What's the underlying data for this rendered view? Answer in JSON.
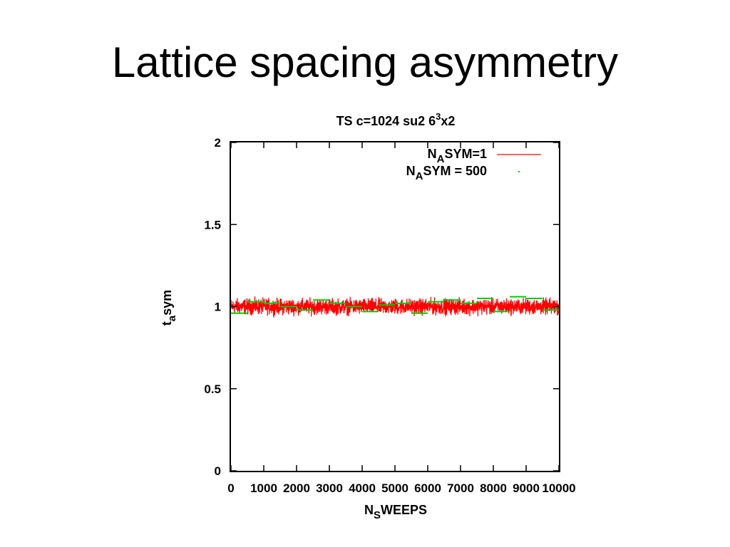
{
  "slide": {
    "title": "Lattice spacing asymmetry"
  },
  "chart_data": {
    "type": "line",
    "title": {
      "pre": "TS c=1024 su2 6",
      "sup": "3",
      "post": "x2"
    },
    "xlabel": {
      "pre": "N",
      "sub": "S",
      "post": "WEEPS"
    },
    "ylabel": {
      "pre": "t",
      "sub": "a",
      "post": "sym"
    },
    "xlim": [
      0,
      10000
    ],
    "ylim": [
      0,
      2
    ],
    "x_ticks": [
      0,
      1000,
      2000,
      3000,
      4000,
      5000,
      6000,
      7000,
      8000,
      9000,
      10000
    ],
    "x_tick_labels": [
      "0",
      "1000",
      "2000",
      "3000",
      "4000",
      "5000",
      "6000",
      "7000",
      "8000",
      "9000",
      "10000"
    ],
    "y_ticks": [
      0,
      0.5,
      1,
      1.5,
      2
    ],
    "y_tick_labels": [
      "0",
      "0.5",
      "1",
      "1.5",
      "2"
    ],
    "grid": false,
    "legend_position": "top-right",
    "series": [
      {
        "name": {
          "pre": "N",
          "sub": "A",
          "post": "SYM=1"
        },
        "color": "#ff0000",
        "style": "noisy-line",
        "center": 1.0,
        "noise_amplitude": 0.05,
        "x_range": [
          0,
          10000
        ]
      },
      {
        "name": {
          "pre": "N",
          "sub": "A",
          "post": "SYM = 500"
        },
        "color": "#00cc00",
        "style": "segments",
        "segment_length": 500,
        "x": [
          0,
          500,
          1000,
          1500,
          2000,
          2500,
          3000,
          3500,
          4000,
          4500,
          5000,
          5500,
          6000,
          6500,
          7000,
          7500,
          8000,
          8500,
          9000,
          9500
        ],
        "values": [
          0.96,
          1.03,
          1.02,
          1.0,
          0.98,
          1.04,
          1.02,
          1.0,
          0.97,
          1.01,
          1.02,
          0.96,
          1.03,
          1.04,
          1.02,
          1.05,
          0.97,
          1.06,
          1.05,
          0.98
        ]
      }
    ]
  }
}
